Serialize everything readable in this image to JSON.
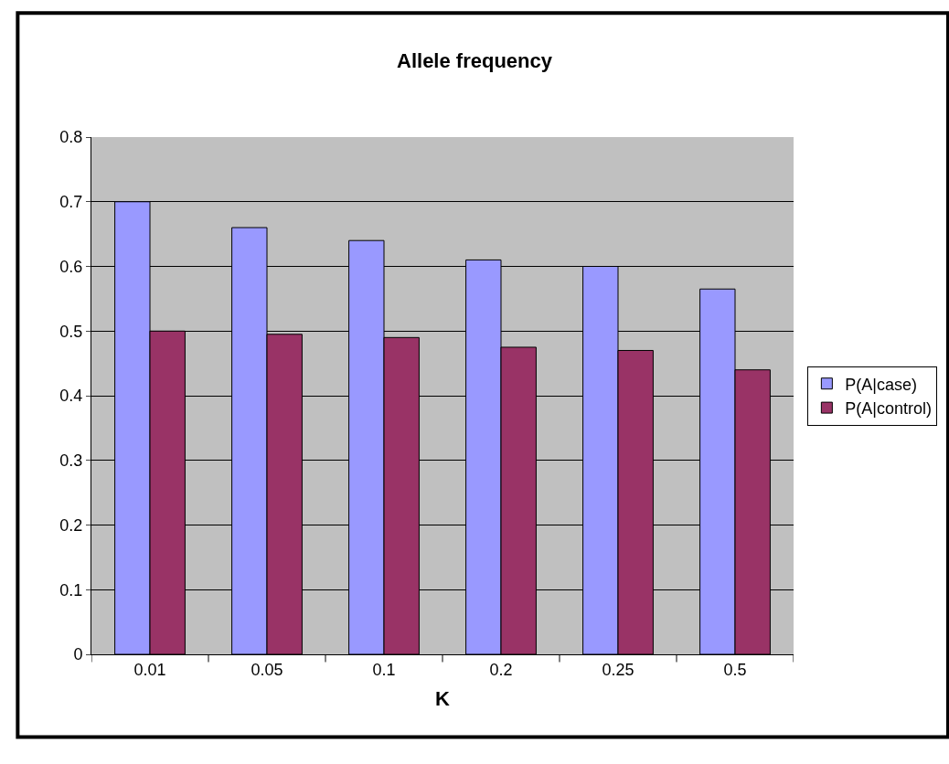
{
  "chart_data": {
    "type": "bar",
    "title": "Allele frequency",
    "xlabel": "K",
    "categories": [
      "0.01",
      "0.05",
      "0.1",
      "0.2",
      "0.25",
      "0.5"
    ],
    "series": [
      {
        "name": "P(A|case)",
        "color": "#9999ff",
        "values": [
          0.7,
          0.66,
          0.64,
          0.61,
          0.6,
          0.565
        ]
      },
      {
        "name": "P(A|control)",
        "color": "#993366",
        "values": [
          0.5,
          0.495,
          0.49,
          0.475,
          0.47,
          0.44
        ]
      }
    ],
    "ylim": [
      0,
      0.8
    ],
    "yticks": [
      0,
      0.1,
      0.2,
      0.3,
      0.4,
      0.5,
      0.6,
      0.7,
      0.8
    ],
    "grid": "y",
    "legend": "right"
  }
}
